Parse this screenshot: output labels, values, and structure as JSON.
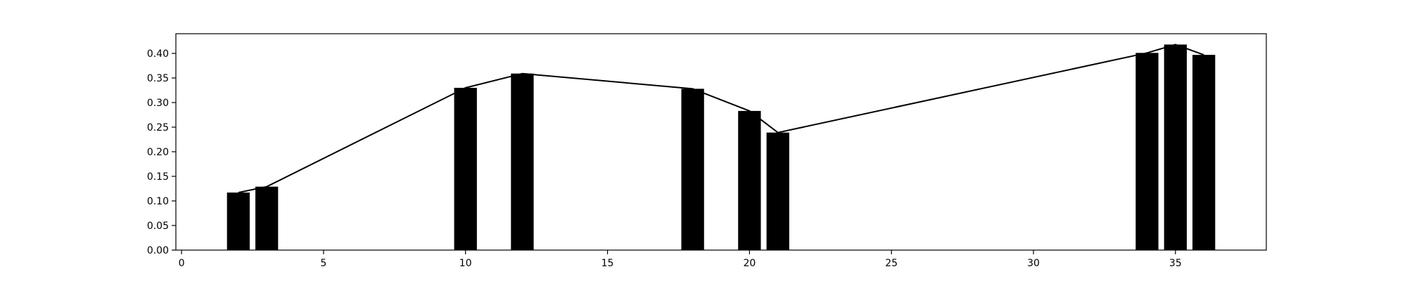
{
  "chart_data": {
    "type": "bar",
    "bar_color": "#000000",
    "line_color": "#000000",
    "background": "#ffffff",
    "grid": false,
    "legend": "none",
    "x": [
      2,
      3,
      10,
      12,
      18,
      20,
      21,
      34,
      35,
      36
    ],
    "values": [
      0.117,
      0.129,
      0.33,
      0.359,
      0.328,
      0.283,
      0.239,
      0.401,
      0.418,
      0.397
    ],
    "overlay_line": true,
    "xlim": [
      -0.2,
      38.2
    ],
    "ylim": [
      0.0,
      0.44
    ],
    "xticks": [
      0,
      5,
      10,
      15,
      20,
      25,
      30,
      35
    ],
    "yticks": [
      0.0,
      0.05,
      0.1,
      0.15,
      0.2,
      0.25,
      0.3,
      0.35,
      0.4
    ],
    "xtick_labels": [
      "0",
      "5",
      "10",
      "15",
      "20",
      "25",
      "30",
      "35"
    ],
    "ytick_labels": [
      "0.00",
      "0.05",
      "0.10",
      "0.15",
      "0.20",
      "0.25",
      "0.30",
      "0.35",
      "0.40"
    ],
    "bar_width": 0.8
  }
}
